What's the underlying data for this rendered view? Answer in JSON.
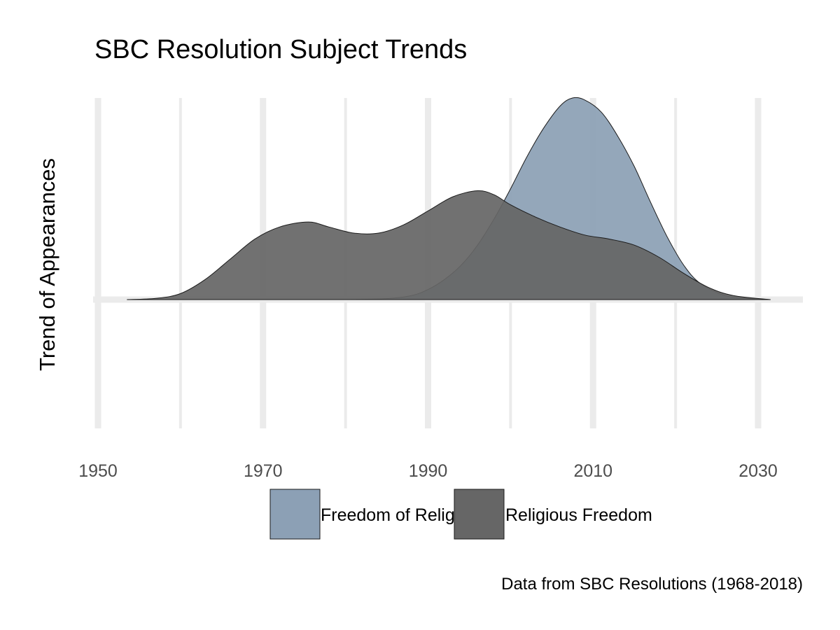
{
  "chart_data": {
    "type": "area",
    "title": "SBC Resolution Subject Trends",
    "ylabel": "Trend of Appearances",
    "xlabel": "",
    "caption": "Data from SBC Resolutions (1968-2018)",
    "x_ticks": [
      1950,
      1970,
      1990,
      2010,
      2030
    ],
    "x_tick_labels": [
      "1950",
      "1970",
      "1990",
      "2010",
      "2030"
    ],
    "xlim": [
      1950,
      2030
    ],
    "grid": true,
    "legend_position": "bottom",
    "series": [
      {
        "name": "Freedom of Religion",
        "color": "#8ca0b5",
        "x": [
          1980,
          1985,
          1988,
          1990,
          1992,
          1994,
          1996,
          1998,
          2000,
          2002,
          2004,
          2006,
          2007.5,
          2009,
          2011,
          2013,
          2015,
          2017,
          2019,
          2021,
          2023,
          2026,
          2029,
          2031.5
        ],
        "y": [
          0,
          0.005,
          0.02,
          0.05,
          0.1,
          0.17,
          0.27,
          0.4,
          0.55,
          0.71,
          0.85,
          0.96,
          1.0,
          0.99,
          0.93,
          0.81,
          0.66,
          0.48,
          0.31,
          0.17,
          0.08,
          0.02,
          0.005,
          0
        ]
      },
      {
        "name": "Religious Freedom",
        "color": "#666666",
        "x": [
          1953.5,
          1957,
          1960,
          1963,
          1966,
          1969,
          1972,
          1975.5,
          1978,
          1981,
          1984,
          1987,
          1990,
          1993,
          1996,
          1998,
          2000,
          2003,
          2006,
          2009,
          2012,
          2015,
          2018,
          2021,
          2024,
          2027,
          2031.5
        ],
        "y": [
          0,
          0.006,
          0.03,
          0.1,
          0.2,
          0.3,
          0.36,
          0.385,
          0.36,
          0.33,
          0.33,
          0.37,
          0.44,
          0.51,
          0.54,
          0.52,
          0.47,
          0.41,
          0.36,
          0.32,
          0.3,
          0.27,
          0.21,
          0.13,
          0.06,
          0.02,
          0
        ]
      }
    ]
  }
}
